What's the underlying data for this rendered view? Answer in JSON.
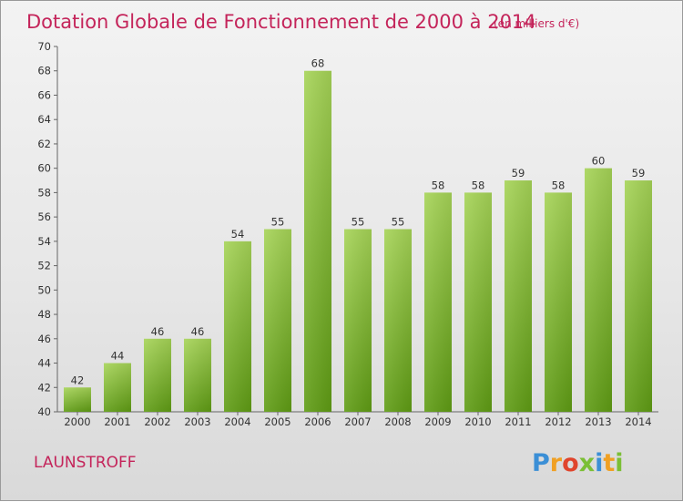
{
  "chart_data": {
    "type": "bar",
    "title": "Dotation Globale de Fonctionnement de 2000 à 2014",
    "unit": "(en milliers d'€)",
    "categories": [
      "2000",
      "2001",
      "2002",
      "2003",
      "2004",
      "2005",
      "2006",
      "2007",
      "2008",
      "2009",
      "2010",
      "2011",
      "2012",
      "2013",
      "2014"
    ],
    "values": [
      42,
      44,
      46,
      46,
      54,
      55,
      68,
      55,
      55,
      58,
      58,
      59,
      58,
      60,
      59
    ],
    "ylim": [
      40,
      70
    ],
    "yticks": [
      40,
      42,
      44,
      46,
      48,
      50,
      52,
      54,
      56,
      58,
      60,
      62,
      64,
      66,
      68,
      70
    ],
    "xlabel": "",
    "ylabel": "",
    "grid": false,
    "bar_color": "#7fba2e",
    "title_color": "#c4245a"
  },
  "footer": {
    "commune": "LAUNSTROFF",
    "brand_letters": [
      "P",
      "r",
      "o",
      "x",
      "i",
      "t",
      "i"
    ],
    "brand_colors": [
      "#3b8fd6",
      "#f0a023",
      "#e0442c",
      "#7bbf35",
      "#3b8fd6",
      "#f0a023",
      "#7bbf35"
    ]
  }
}
